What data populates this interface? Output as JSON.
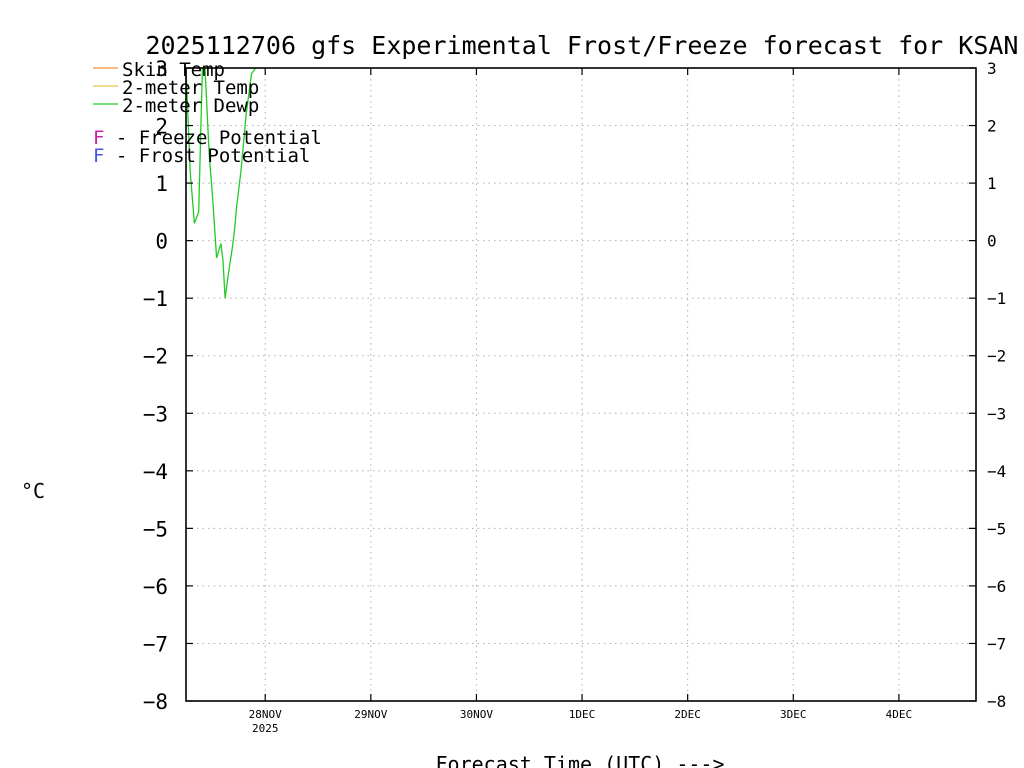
{
  "chart_data": {
    "type": "line",
    "title": "2025112706 gfs Experimental Frost/Freeze forecast for KSAN",
    "xlabel": "Forecast Time (UTC) --->",
    "ylabel": "°C",
    "ylim": [
      -8,
      3
    ],
    "yticks": [
      3,
      2,
      1,
      0,
      -1,
      -2,
      -3,
      -4,
      -5,
      -6,
      -7,
      -8
    ],
    "ytick_labels": [
      "3",
      "2",
      "1",
      "0",
      "−1",
      "−2",
      "−3",
      "−4",
      "−5",
      "−6",
      "−7",
      "−8"
    ],
    "x_unit": "days since 27NOV2025 06UTC",
    "xlim": [
      0,
      7.48
    ],
    "xticks": [
      {
        "x": 0.75,
        "label": "28NOV",
        "sublabel": "2025"
      },
      {
        "x": 1.75,
        "label": "29NOV",
        "sublabel": ""
      },
      {
        "x": 2.75,
        "label": "30NOV",
        "sublabel": ""
      },
      {
        "x": 3.75,
        "label": "1DEC",
        "sublabel": ""
      },
      {
        "x": 4.75,
        "label": "2DEC",
        "sublabel": ""
      },
      {
        "x": 5.75,
        "label": "3DEC",
        "sublabel": ""
      },
      {
        "x": 6.75,
        "label": "4DEC",
        "sublabel": ""
      }
    ],
    "grid": true,
    "legend_position": "top-left",
    "legend": [
      {
        "label": "Skin Temp",
        "color": "#ff8c33"
      },
      {
        "label": "2-meter Temp",
        "color": "#e6c84a"
      },
      {
        "label": "2-meter Dewp",
        "color": "#22cc22"
      }
    ],
    "potentials": [
      {
        "letter": "F",
        "label": " - Freeze Potential",
        "color": "#cc22aa"
      },
      {
        "letter": "F",
        "label": " - Frost Potential",
        "color": "#4455ee"
      }
    ],
    "series": [
      {
        "name": "2-meter Dewp",
        "color": "#22cc22",
        "x": [
          0.0,
          0.04,
          0.08,
          0.12,
          0.155,
          0.18,
          0.22,
          0.25,
          0.29,
          0.33,
          0.35,
          0.37,
          0.4,
          0.44,
          0.46,
          0.48,
          0.52,
          0.57,
          0.62,
          0.66
        ],
        "y": [
          3.0,
          1.2,
          0.3,
          0.5,
          3.0,
          3.0,
          1.5,
          0.8,
          -0.3,
          -0.05,
          -0.35,
          -1.0,
          -0.6,
          -0.1,
          0.2,
          0.6,
          1.2,
          2.2,
          2.9,
          3.0
        ]
      }
    ]
  }
}
